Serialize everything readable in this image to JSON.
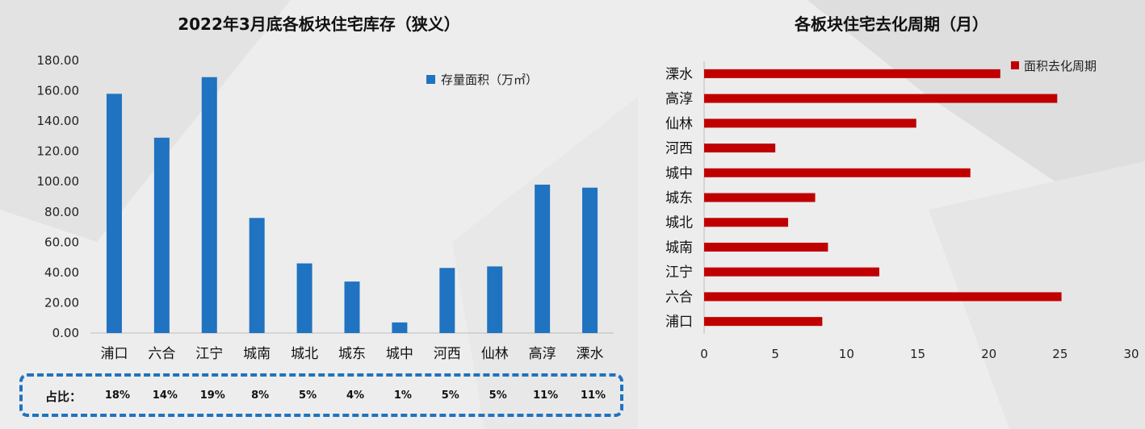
{
  "chart_data": [
    {
      "type": "bar",
      "title": "2022年3月底各板块住宅库存（狭义）",
      "categories": [
        "浦口",
        "六合",
        "江宁",
        "城南",
        "城北",
        "城东",
        "城中",
        "河西",
        "仙林",
        "高淳",
        "溧水"
      ],
      "series": [
        {
          "name": "存量面积（万㎡）",
          "values": [
            158,
            129,
            169,
            76,
            46,
            34,
            7,
            43,
            44,
            98,
            96
          ],
          "color": "#1f73c0"
        }
      ],
      "ylim": [
        0,
        180
      ],
      "yticks": [
        "0.00",
        "20.00",
        "40.00",
        "60.00",
        "80.00",
        "100.00",
        "120.00",
        "140.00",
        "160.00",
        "180.00"
      ],
      "legend_position": "top-right",
      "grid": false,
      "share_prefix": "占比：",
      "shares": [
        "18%",
        "14%",
        "19%",
        "8%",
        "5%",
        "4%",
        "1%",
        "5%",
        "5%",
        "11%",
        "11%"
      ]
    },
    {
      "type": "bar",
      "orientation": "horizontal",
      "title": "各板块住宅去化周期（月）",
      "categories": [
        "溧水",
        "高淳",
        "仙林",
        "河西",
        "城中",
        "城东",
        "城北",
        "城南",
        "江宁",
        "六合",
        "浦口"
      ],
      "series": [
        {
          "name": "面积去化周期",
          "values": [
            20.8,
            24.8,
            14.9,
            5.0,
            18.7,
            7.8,
            5.9,
            8.7,
            12.3,
            25.1,
            8.3
          ],
          "color": "#c00000"
        }
      ],
      "xlim": [
        0,
        30
      ],
      "xticks": [
        "0",
        "5",
        "10",
        "15",
        "20",
        "25",
        "30"
      ],
      "legend_position": "top-right",
      "grid": false
    }
  ]
}
